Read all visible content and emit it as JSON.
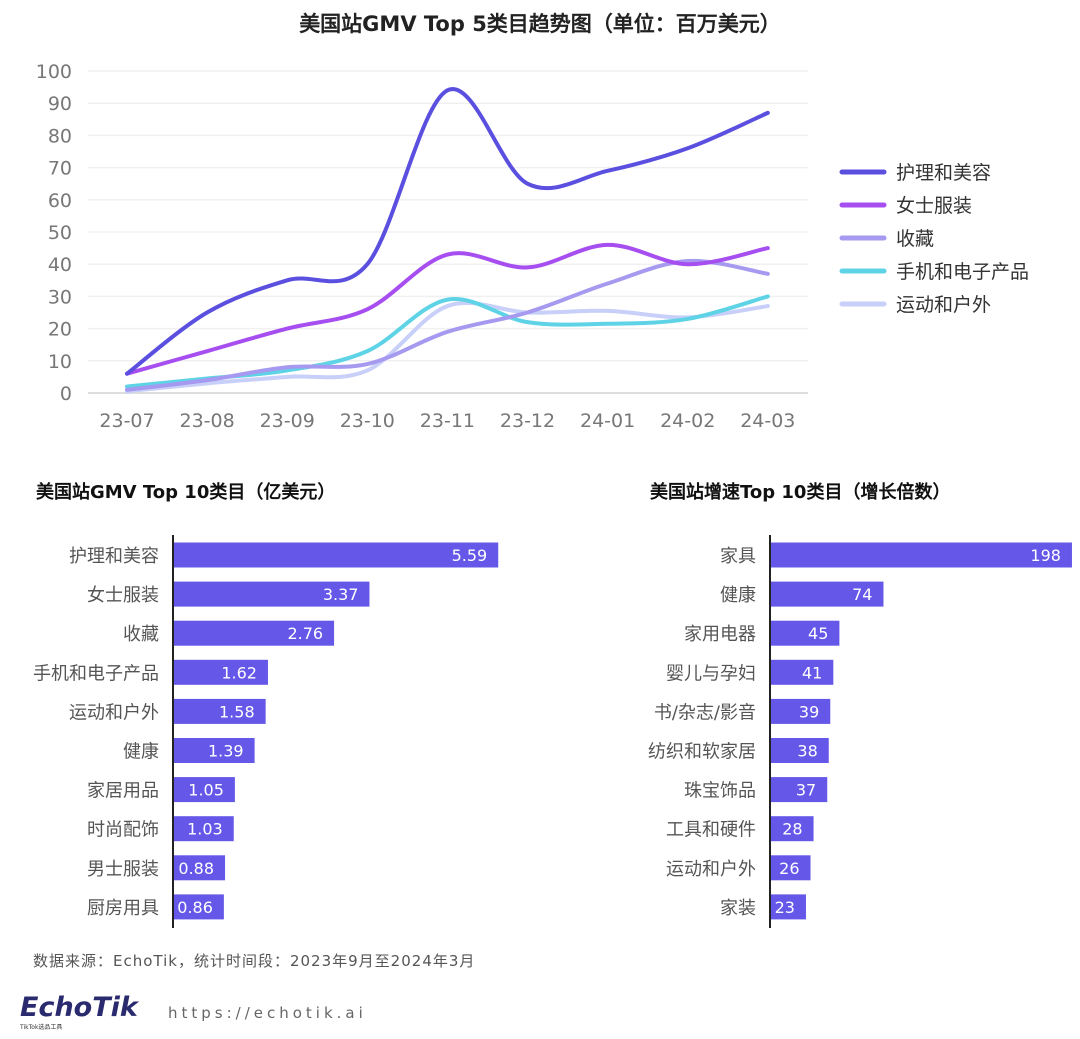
{
  "chart_data": [
    {
      "type": "line",
      "title": "美国站GMV Top 5类目趋势图（单位：百万美元）",
      "x": [
        "23-07",
        "23-08",
        "23-09",
        "23-10",
        "23-11",
        "23-12",
        "24-01",
        "24-02",
        "24-03"
      ],
      "ylim": [
        0,
        100
      ],
      "yticks": [
        0,
        10,
        20,
        30,
        40,
        50,
        60,
        70,
        80,
        90,
        100
      ],
      "grid": true,
      "legend": "right",
      "series": [
        {
          "name": "护理和美容",
          "color": "#5b4fe0",
          "values": [
            6,
            25,
            35,
            40,
            94,
            65,
            69,
            76,
            87
          ]
        },
        {
          "name": "女士服装",
          "color": "#a64ef0",
          "values": [
            6,
            13,
            20,
            26,
            43,
            39,
            46,
            40,
            45
          ]
        },
        {
          "name": "收藏",
          "color": "#a59af0",
          "values": [
            1,
            4,
            8,
            9,
            19,
            25,
            34,
            41,
            37
          ]
        },
        {
          "name": "手机和电子产品",
          "color": "#5fd3e6",
          "values": [
            2,
            4.5,
            7,
            13,
            29,
            22,
            21.5,
            23,
            30
          ]
        },
        {
          "name": "运动和户外",
          "color": "#c8cff8",
          "values": [
            0.5,
            3,
            5,
            7,
            27,
            25,
            25.5,
            23.5,
            27
          ]
        }
      ]
    },
    {
      "type": "bar",
      "orientation": "horizontal",
      "title": "美国站GMV Top 10类目（亿美元）",
      "color": "#6558e8",
      "categories": [
        "护理和美容",
        "女士服装",
        "收藏",
        "手机和电子产品",
        "运动和户外",
        "健康",
        "家居用品",
        "时尚配饰",
        "男士服装",
        "厨房用具"
      ],
      "values": [
        5.59,
        3.37,
        2.76,
        1.62,
        1.58,
        1.39,
        1.05,
        1.03,
        0.88,
        0.86
      ]
    },
    {
      "type": "bar",
      "orientation": "horizontal",
      "title": "美国站增速Top 10类目（增长倍数）",
      "color": "#6558e8",
      "categories": [
        "家具",
        "健康",
        "家用电器",
        "婴儿与孕妇",
        "书/杂志/影音",
        "纺织和软家居",
        "珠宝饰品",
        "工具和硬件",
        "运动和户外",
        "家装"
      ],
      "values": [
        198,
        74,
        45,
        41,
        39,
        38,
        37,
        28,
        26,
        23
      ]
    }
  ],
  "footer": {
    "source": "数据来源：EchoTik，统计时间段：2023年9月至2024年3月",
    "logo": "EchoTik",
    "logo_sub": "TikTok选品工具",
    "url": "https://echotik.ai"
  }
}
